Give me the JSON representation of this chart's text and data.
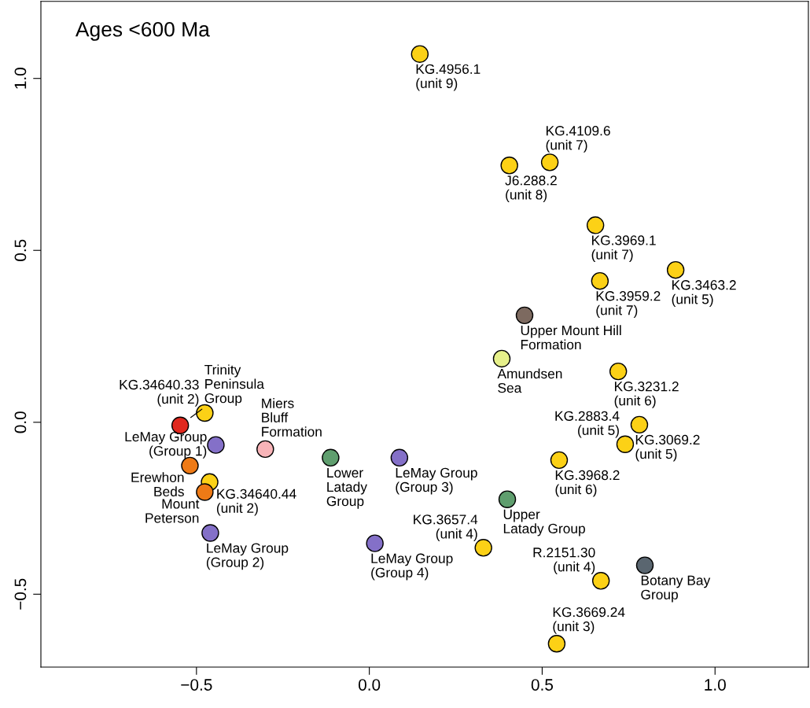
{
  "chart_data": {
    "type": "scatter",
    "marker": "circle",
    "grid": false,
    "legend": false,
    "xlim": [
      -0.95,
      1.27
    ],
    "ylim": [
      -0.712,
      1.224
    ],
    "xticks": [
      {
        "value": -0.5,
        "label": "−0.5"
      },
      {
        "value": 0.0,
        "label": "0.0"
      },
      {
        "value": 0.5,
        "label": "0.5"
      },
      {
        "value": 1.0,
        "label": "1.0"
      }
    ],
    "yticks": [
      {
        "value": -0.5,
        "label": "−0.5"
      },
      {
        "value": 0.0,
        "label": "0.0"
      },
      {
        "value": 0.5,
        "label": "0.5"
      },
      {
        "value": 1.0,
        "label": "1.0"
      }
    ],
    "x": [
      0.146,
      0.405,
      0.522,
      0.654,
      0.667,
      0.886,
      0.449,
      0.383,
      0.72,
      0.781,
      0.74,
      0.549,
      0.399,
      0.797,
      0.67,
      0.542,
      0.33,
      0.016,
      0.087,
      -0.112,
      -0.301,
      -0.444,
      -0.476,
      -0.547,
      -0.519,
      -0.462,
      -0.476,
      -0.46
    ],
    "values": [
      1.071,
      0.747,
      0.756,
      0.573,
      0.411,
      0.443,
      0.311,
      0.185,
      0.148,
      -0.007,
      -0.064,
      -0.11,
      -0.224,
      -0.416,
      -0.461,
      -0.644,
      -0.365,
      -0.352,
      -0.103,
      -0.103,
      -0.078,
      -0.066,
      0.027,
      -0.009,
      -0.126,
      -0.174,
      -0.203,
      -0.322
    ],
    "colors": [
      "#fcd116",
      "#fcd116",
      "#fcd116",
      "#fcd116",
      "#fcd116",
      "#fcd116",
      "#7d6a60",
      "#e6f08a",
      "#fcd116",
      "#fcd116",
      "#fcd116",
      "#fcd116",
      "#5f9e6e",
      "#5a6670",
      "#fcd116",
      "#fcd116",
      "#fcd116",
      "#8470c8",
      "#8470c8",
      "#5f9e6e",
      "#f8b4b8",
      "#8470c8",
      "#fcd116",
      "#e0281e",
      "#ee7a16",
      "#fcd116",
      "#ee7a16",
      "#8470c8"
    ],
    "annotations": [
      "Ages <600 Ma",
      {
        "text": "KG.4956.1\n(unit 9)",
        "x": 0.146,
        "y": 1.071
      },
      {
        "text": "J6.288.2\n(unit 8)",
        "x": 0.405,
        "y": 0.747
      },
      {
        "text": "KG.4109.6\n(unit 7)",
        "x": 0.522,
        "y": 0.756
      },
      {
        "text": "KG.3969.1\n(unit 7)",
        "x": 0.654,
        "y": 0.573
      },
      {
        "text": "KG.3959.2\n(unit 7)",
        "x": 0.667,
        "y": 0.411
      },
      {
        "text": "KG.3463.2\n(unit 5)",
        "x": 0.886,
        "y": 0.443
      },
      {
        "text": "Upper Mount Hill\nFormation",
        "x": 0.449,
        "y": 0.311
      },
      {
        "text": "Amundsen\nSea",
        "x": 0.383,
        "y": 0.185
      },
      {
        "text": "KG.3231.2\n(unit 6)",
        "x": 0.72,
        "y": 0.148
      },
      {
        "text": "KG.3069.2\n(unit 5)",
        "x": 0.781,
        "y": -0.007
      },
      {
        "text": "KG.2883.4\n(unit 5)",
        "x": 0.74,
        "y": -0.064
      },
      {
        "text": "KG.3968.2\n(unit 6)",
        "x": 0.549,
        "y": -0.11
      },
      {
        "text": "Upper\nLatady Group",
        "x": 0.399,
        "y": -0.224
      },
      {
        "text": "Botany Bay\nGroup",
        "x": 0.797,
        "y": -0.416
      },
      {
        "text": "R.2151.30\n(unit 4)",
        "x": 0.67,
        "y": -0.461
      },
      {
        "text": "KG.3669.24\n(unit 3)",
        "x": 0.542,
        "y": -0.644
      },
      {
        "text": "KG.3657.4\n(unit 4)",
        "x": 0.33,
        "y": -0.365
      },
      {
        "text": "LeMay Group\n(Group 4)",
        "x": 0.016,
        "y": -0.352
      },
      {
        "text": "LeMay Group\n(Group 3)",
        "x": 0.087,
        "y": -0.103
      },
      {
        "text": "Lower\nLatady\nGroup",
        "x": -0.112,
        "y": -0.103
      },
      {
        "text": "Miers\nBluff\nFormation",
        "x": -0.301,
        "y": -0.078
      },
      {
        "text": "LeMay Group\n(Group 1)",
        "x": -0.444,
        "y": -0.066
      },
      {
        "text": "KG.34640.33\n(unit 2)",
        "x": -0.476,
        "y": 0.027
      },
      {
        "text": "Trinity\nPeninsula\nGroup",
        "x": -0.547,
        "y": -0.009
      },
      {
        "text": "Erewhon\nBeds",
        "x": -0.519,
        "y": -0.126
      },
      {
        "text": "KG.34640.44\n(unit 2)",
        "x": -0.462,
        "y": -0.174
      },
      {
        "text": "Mount\nPeterson",
        "x": -0.476,
        "y": -0.203
      },
      {
        "text": "LeMay Group\n(Group 2)",
        "x": -0.46,
        "y": -0.322
      }
    ]
  }
}
